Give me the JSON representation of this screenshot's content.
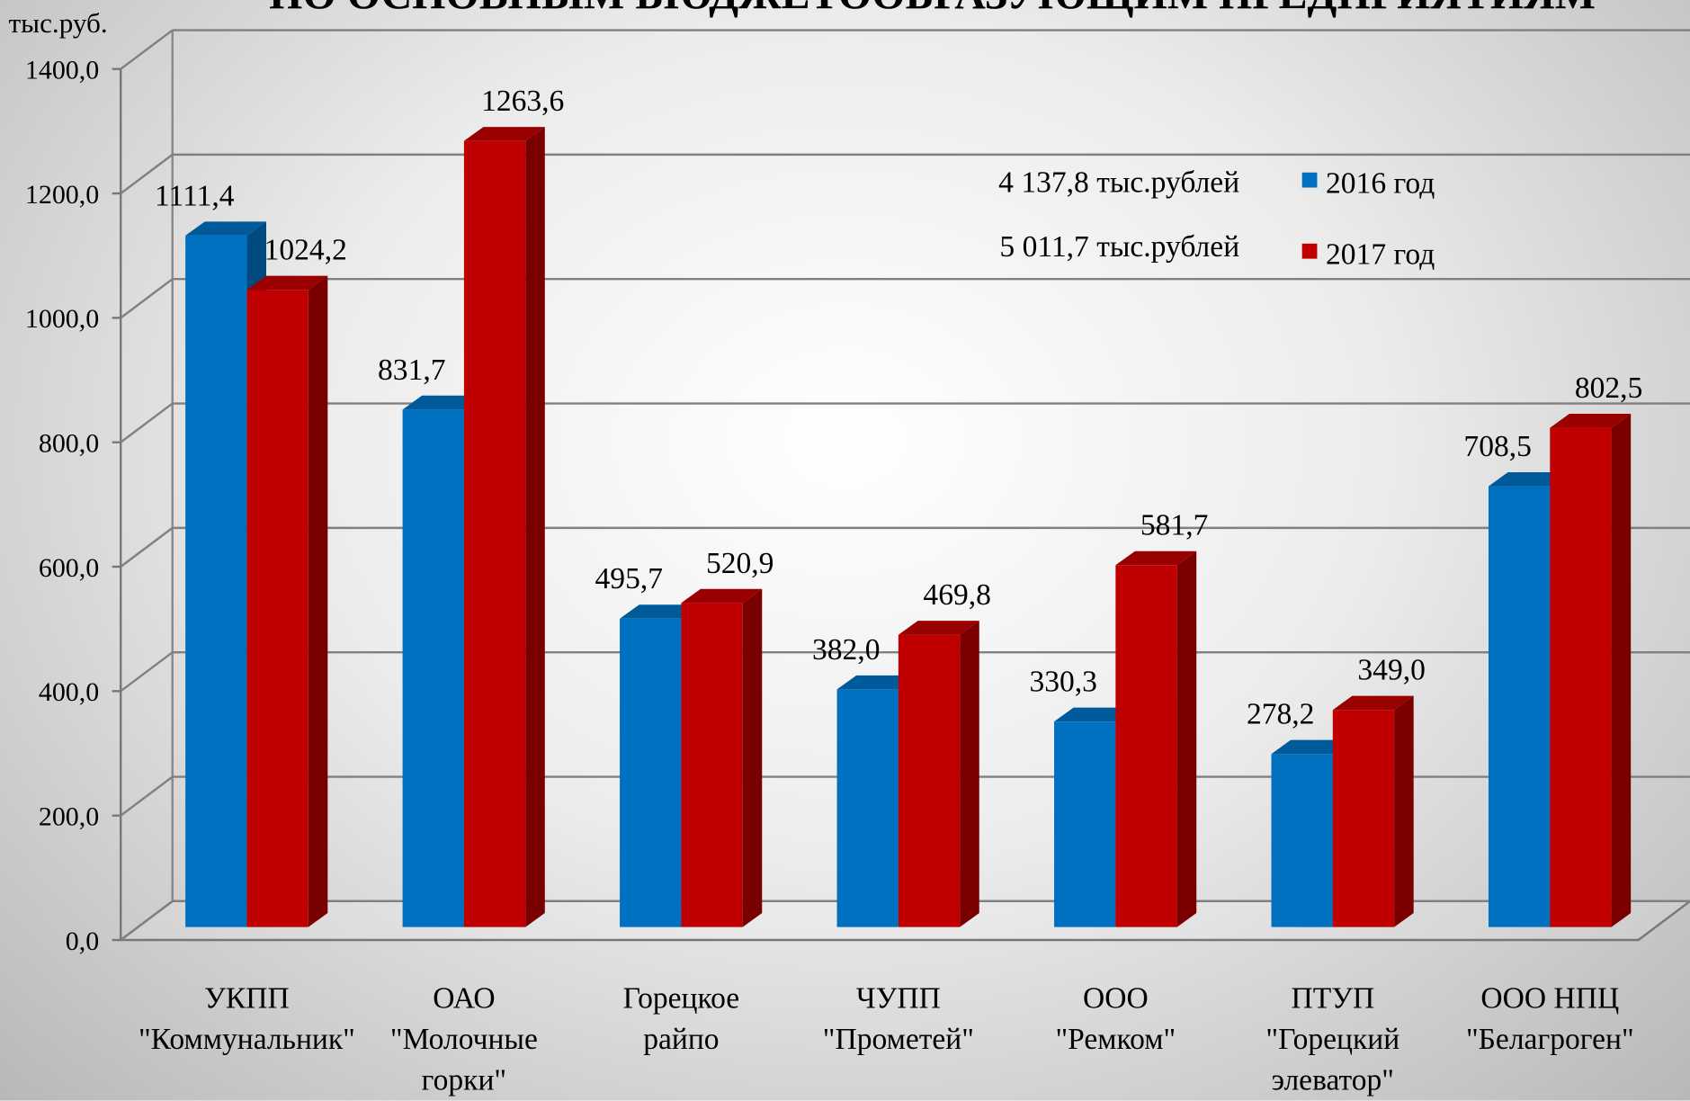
{
  "chart_data": {
    "type": "bar3d",
    "title": "ПО ОСНОВНЫМ БЮДЖЕТООБРАЗУЮЩИМ ПРЕДПРИЯТИЯМ",
    "y_label": "тыс.руб.",
    "categories": [
      "УКПП\n\"Коммунальник\"",
      "ОАО\n\"Молочные\nгорки\"",
      "Горецкое\nрайпо",
      "ЧУПП\n\"Прометей\"",
      "ООО\n\"Ремком\"",
      "ПТУП\n\"Горецкий\nэлеватор\"",
      "ООО НПЦ\n\"Белагроген\""
    ],
    "series": [
      {
        "name": "2016 год",
        "color": "#0070c0",
        "values": [
          1111.4,
          831.7,
          495.7,
          382.0,
          330.3,
          278.2,
          708.5
        ],
        "value_labels": [
          "1111,4",
          "831,7",
          "495,7",
          "382,0",
          "330,3",
          "278,2",
          "708,5"
        ]
      },
      {
        "name": "2017 год",
        "color": "#c00000",
        "values": [
          1024.2,
          1263.6,
          520.9,
          469.8,
          581.7,
          349.0,
          802.5
        ],
        "value_labels": [
          "1024,2",
          "1263,6",
          "520,9",
          "469,8",
          "581,7",
          "349,0",
          "802,5"
        ]
      }
    ],
    "annotations": [
      "4 137,8 тыс.рублей",
      "5 011,7 тыс.рублей"
    ],
    "ylim": [
      0,
      1400
    ],
    "yticks": [
      {
        "value": 0,
        "label": "0,0"
      },
      {
        "value": 200,
        "label": "200,0"
      },
      {
        "value": 400,
        "label": "400,0"
      },
      {
        "value": 600,
        "label": "600,0"
      },
      {
        "value": 800,
        "label": "800,0"
      },
      {
        "value": 1000,
        "label": "1000,0"
      },
      {
        "value": 1200,
        "label": "1200,0"
      },
      {
        "value": 1400,
        "label": "1400,0"
      }
    ],
    "grid": true
  }
}
